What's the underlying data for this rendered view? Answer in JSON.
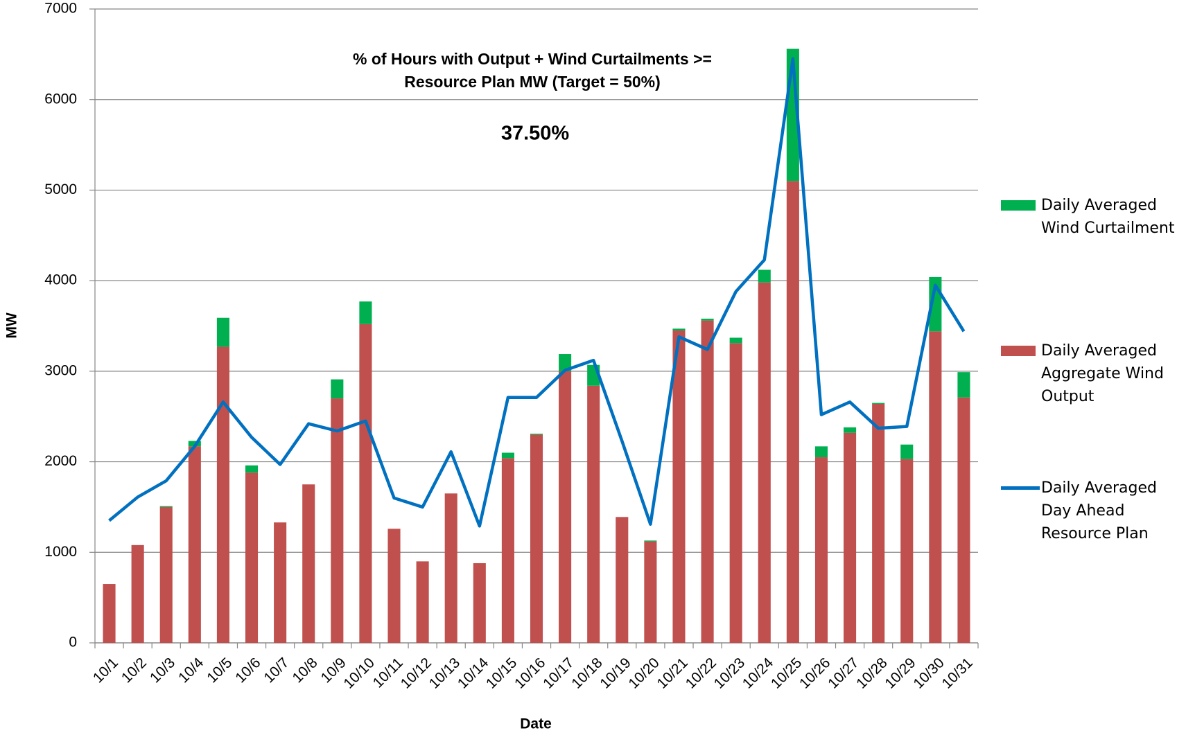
{
  "chart_data": {
    "type": "bar",
    "annotations": [
      "% of Hours with Output + Wind Curtailments >=",
      "Resource Plan MW (Target = 50%)",
      "37.50%"
    ],
    "x_label": "Date",
    "y_label": "MW",
    "categories": [
      "10/1",
      "10/2",
      "10/3",
      "10/4",
      "10/5",
      "10/6",
      "10/7",
      "10/8",
      "10/9",
      "10/10",
      "10/11",
      "10/12",
      "10/13",
      "10/14",
      "10/15",
      "10/16",
      "10/17",
      "10/18",
      "10/19",
      "10/20",
      "10/21",
      "10/22",
      "10/23",
      "10/24",
      "10/25",
      "10/26",
      "10/27",
      "10/28",
      "10/29",
      "10/30",
      "10/31"
    ],
    "series": [
      {
        "name": "Daily Averaged Wind Curtailment",
        "color": "#00b050",
        "type": "bar",
        "values": [
          0,
          0,
          10,
          60,
          320,
          80,
          0,
          0,
          210,
          250,
          0,
          0,
          0,
          0,
          60,
          10,
          190,
          230,
          0,
          10,
          20,
          20,
          60,
          140,
          1460,
          120,
          60,
          10,
          160,
          600,
          280
        ]
      },
      {
        "name": "Daily Averaged Aggregate Wind Output",
        "color": "#c0504d",
        "type": "bar",
        "values": [
          650,
          1080,
          1500,
          2170,
          3270,
          1880,
          1330,
          1750,
          2700,
          3520,
          1260,
          900,
          1650,
          880,
          2040,
          2300,
          3000,
          2840,
          1390,
          1120,
          3450,
          3560,
          3310,
          3980,
          5100,
          2050,
          2320,
          2640,
          2030,
          3440,
          2710
        ]
      },
      {
        "name": "Daily Averaged Day Ahead Resource Plan",
        "color": "#0070c0",
        "type": "line",
        "values": [
          1350,
          1610,
          1790,
          2170,
          2660,
          2270,
          1970,
          2420,
          2340,
          2450,
          1600,
          1500,
          2110,
          1290,
          2710,
          2710,
          3010,
          3120,
          2230,
          1310,
          3380,
          3240,
          3880,
          4230,
          6450,
          2520,
          2660,
          2370,
          2390,
          3950,
          3440
        ]
      }
    ],
    "ylim": [
      0,
      7000
    ],
    "yticks": [
      0,
      1000,
      2000,
      3000,
      4000,
      5000,
      6000,
      7000
    ],
    "grid": true
  }
}
